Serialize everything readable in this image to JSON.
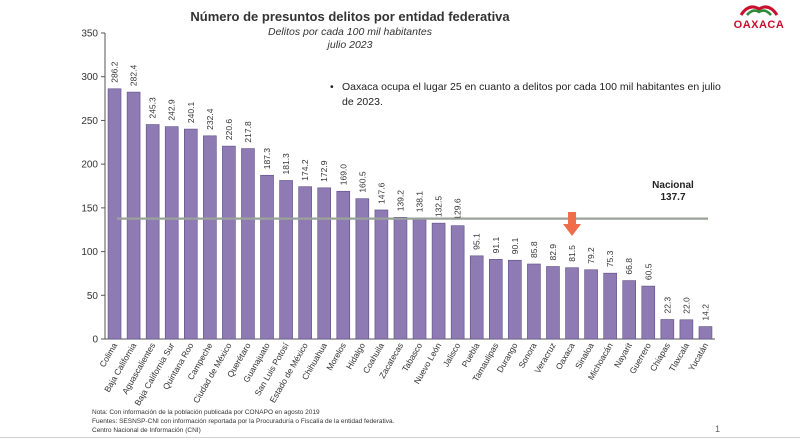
{
  "title": "Número de presuntos delitos por entidad federativa",
  "subtitle1": "Delitos por cada 100 mil habitantes",
  "subtitle2": "julio 2023",
  "logo_text": "OAXACA",
  "note": "Oaxaca ocupa el lugar 25 en cuanto a delitos por cada 100 mil habitantes en julio de 2023.",
  "footer": {
    "line1": "Nota: Con información de la población publicada por CONAPO en agosto 2019",
    "line2": "Fuentes: SESNSP-CNI con información reportada por la Procuraduría o Fiscalía de la entidad federativa.",
    "line3": "Centro Nacional de Información (CNI)"
  },
  "page_number": "1",
  "colors": {
    "bar": "#8e7bb4",
    "bar_edge": "#5e4b86",
    "reference_line": "#9aa29a",
    "arrow": "#ee6d4b",
    "logo": "#c8102e"
  },
  "chart_data": {
    "type": "bar",
    "categories": [
      "Colima",
      "Baja California",
      "Aguascalientes",
      "Baja California Sur",
      "Quintana Roo",
      "Campeche",
      "Ciudad de México",
      "Querétaro",
      "Guanajuato",
      "San Luis Potosí",
      "Estado de México",
      "Chihuahua",
      "Morelos",
      "Hidalgo",
      "Coahuila",
      "Zacatecas",
      "Tabasco",
      "Nuevo León",
      "Jalisco",
      "Puebla",
      "Tamaulipas",
      "Durango",
      "Sonora",
      "Veracruz",
      "Oaxaca",
      "Sinaloa",
      "Michoacán",
      "Nayarit",
      "Guerrero",
      "Chiapas",
      "Tlaxcala",
      "Yucatán"
    ],
    "values": [
      286.2,
      282.4,
      245.3,
      242.9,
      240.1,
      232.4,
      220.6,
      217.8,
      187.3,
      181.3,
      174.2,
      172.9,
      169.0,
      160.5,
      147.6,
      139.2,
      138.1,
      132.5,
      129.6,
      95.1,
      91.1,
      90.1,
      85.8,
      82.9,
      81.5,
      79.2,
      75.3,
      66.8,
      60.5,
      22.3,
      22.0,
      14.2
    ],
    "value_labels": [
      "286.2",
      "282.4",
      "245.3",
      "242.9",
      "240.1",
      "232.4",
      "220.6",
      "217.8",
      "187.3",
      "181.3",
      "174.2",
      "172.9",
      "169.0",
      "160.5",
      "147.6",
      "139.2",
      "138.1",
      "132.5",
      "129.6",
      "95.1",
      "91.1",
      "90.1",
      "85.8",
      "82.9",
      "81.5",
      "79.2",
      "75.3",
      "66.8",
      "60.5",
      "22.3",
      "22.0",
      "14.2"
    ],
    "ylim": [
      0,
      350
    ],
    "yticks": [
      0,
      50,
      100,
      150,
      200,
      250,
      300,
      350
    ],
    "reference": {
      "label": "Nacional",
      "value": 137.7,
      "value_label": "137.7"
    },
    "highlight": "Oaxaca",
    "grid": false,
    "legend": "none"
  }
}
